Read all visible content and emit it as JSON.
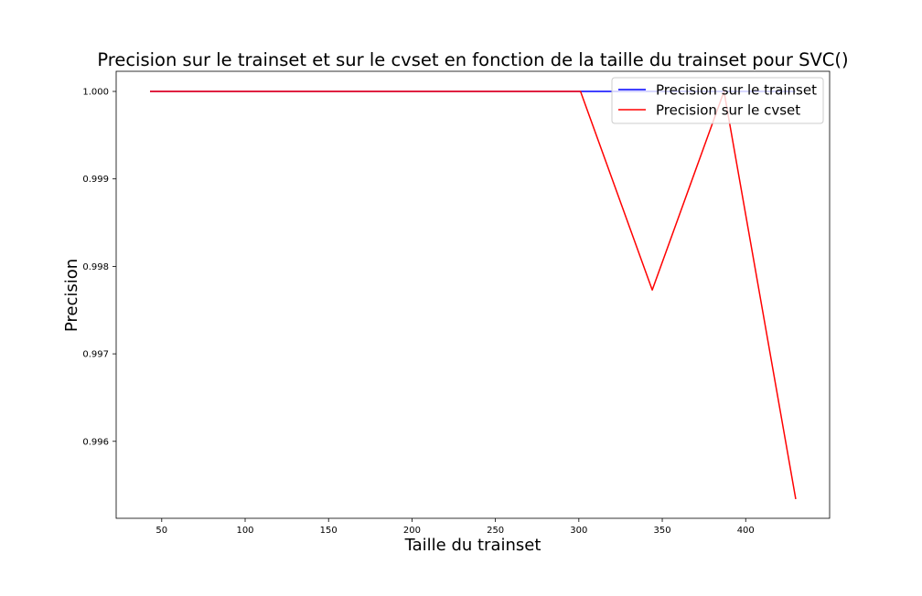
{
  "chart_data": {
    "type": "line",
    "title": "Precision sur le trainset et sur le cvset en fonction de la taille du trainset pour SVC()",
    "xlabel": "Taille du trainset",
    "ylabel": "Precision",
    "xlim": [
      22.7,
      450.3
    ],
    "ylim": [
      0.99512,
      1.00023
    ],
    "x_ticks": [
      50,
      100,
      150,
      200,
      250,
      300,
      350,
      400
    ],
    "x_tick_labels": [
      "50",
      "100",
      "150",
      "200",
      "250",
      "300",
      "350",
      "400"
    ],
    "y_ticks": [
      0.996,
      0.997,
      0.998,
      0.999,
      1.0
    ],
    "y_tick_labels": [
      "0.996",
      "0.997",
      "0.998",
      "0.999",
      "1.000"
    ],
    "grid": false,
    "legend_position": "top-right",
    "series": [
      {
        "name": "Precision sur le trainset",
        "color": "#0000ff",
        "x": [
          43,
          86,
          129,
          172,
          215,
          258,
          301,
          344,
          387,
          430
        ],
        "y": [
          1.0,
          1.0,
          1.0,
          1.0,
          1.0,
          1.0,
          1.0,
          1.0,
          1.0,
          1.0
        ]
      },
      {
        "name": "Precision sur le cvset",
        "color": "#ff0000",
        "x": [
          43,
          86,
          129,
          172,
          215,
          258,
          301,
          344,
          387,
          430
        ],
        "y": [
          1.0,
          1.0,
          1.0,
          1.0,
          1.0,
          1.0,
          1.0,
          0.99773,
          1.0,
          0.99534
        ]
      }
    ]
  }
}
